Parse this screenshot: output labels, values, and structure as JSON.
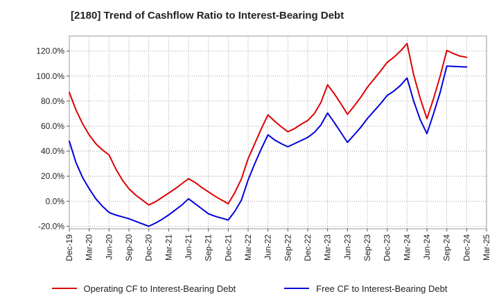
{
  "title": "[2180]  Trend of Cashflow Ratio to Interest-Bearing Debt",
  "chart_data": {
    "type": "line",
    "title": "[2180]  Trend of Cashflow Ratio to Interest-Bearing Debt",
    "xlabel": "",
    "ylabel": "",
    "x_ticks": [
      "Dec-19",
      "Mar-20",
      "Jun-20",
      "Sep-20",
      "Dec-20",
      "Mar-21",
      "Jun-21",
      "Sep-21",
      "Dec-21",
      "Mar-22",
      "Jun-22",
      "Sep-22",
      "Dec-22",
      "Mar-23",
      "Jun-23",
      "Sep-23",
      "Dec-23",
      "Mar-24",
      "Jun-24",
      "Sep-24",
      "Dec-24",
      "Mar-25"
    ],
    "y_ticks": [
      "-20.0%",
      "0.0%",
      "20.0%",
      "40.0%",
      "60.0%",
      "80.0%",
      "100.0%",
      "120.0%"
    ],
    "ylim": [
      -22,
      132
    ],
    "grid": true,
    "legend_position": "bottom",
    "x_months": [
      0,
      1,
      2,
      3,
      4,
      5,
      6,
      7,
      8,
      9,
      10,
      11,
      12,
      13,
      14,
      15,
      16,
      17,
      18,
      19,
      20,
      21,
      22,
      23,
      24,
      25,
      26,
      27,
      28,
      29,
      30,
      31,
      32,
      33,
      34,
      35,
      36,
      37,
      38,
      39,
      40,
      41,
      42,
      43,
      44,
      45,
      46,
      47,
      48,
      49,
      50,
      51,
      52,
      53,
      54,
      55,
      56,
      57,
      58,
      59,
      60
    ],
    "series": [
      {
        "name": "Operating CF to Interest-Bearing Debt",
        "color": "#dd0000",
        "points": [
          [
            0,
            87
          ],
          [
            1,
            73
          ],
          [
            2,
            62
          ],
          [
            3,
            53
          ],
          [
            4,
            46
          ],
          [
            5,
            41
          ],
          [
            6,
            37
          ],
          [
            7,
            26
          ],
          [
            8,
            17
          ],
          [
            9,
            10
          ],
          [
            10,
            5
          ],
          [
            11,
            1
          ],
          [
            12,
            -3
          ],
          [
            13,
            -0.5
          ],
          [
            14,
            3
          ],
          [
            15,
            6.5
          ],
          [
            16,
            10
          ],
          [
            17,
            14
          ],
          [
            18,
            18
          ],
          [
            19,
            15
          ],
          [
            20,
            11
          ],
          [
            21,
            7.5
          ],
          [
            22,
            4
          ],
          [
            23,
            1
          ],
          [
            24,
            -2
          ],
          [
            25,
            7
          ],
          [
            26,
            18
          ],
          [
            27,
            34
          ],
          [
            28,
            46
          ],
          [
            29,
            58
          ],
          [
            30,
            69
          ],
          [
            31,
            64
          ],
          [
            32,
            59.5
          ],
          [
            33,
            55.5
          ],
          [
            34,
            58
          ],
          [
            35,
            61.5
          ],
          [
            36,
            64.5
          ],
          [
            37,
            70
          ],
          [
            38,
            79
          ],
          [
            39,
            93
          ],
          [
            40,
            86
          ],
          [
            41,
            78
          ],
          [
            42,
            69.5
          ],
          [
            43,
            76
          ],
          [
            44,
            83
          ],
          [
            45,
            91
          ],
          [
            46,
            97.5
          ],
          [
            47,
            104
          ],
          [
            48,
            111
          ],
          [
            49,
            115
          ],
          [
            50,
            120
          ],
          [
            51,
            126
          ],
          [
            52,
            101
          ],
          [
            53,
            82
          ],
          [
            54,
            66
          ],
          [
            55,
            82
          ],
          [
            56,
            100
          ],
          [
            57,
            120.5
          ],
          [
            58,
            118
          ],
          [
            59,
            116
          ],
          [
            60,
            115
          ]
        ]
      },
      {
        "name": "Free CF to Interest-Bearing Debt",
        "color": "#0000dd",
        "points": [
          [
            0,
            48
          ],
          [
            1,
            31
          ],
          [
            2,
            19
          ],
          [
            3,
            10
          ],
          [
            4,
            2
          ],
          [
            5,
            -4
          ],
          [
            6,
            -9
          ],
          [
            7,
            -11
          ],
          [
            8,
            -12.5
          ],
          [
            9,
            -14
          ],
          [
            10,
            -16
          ],
          [
            11,
            -18
          ],
          [
            12,
            -20
          ],
          [
            13,
            -17.5
          ],
          [
            14,
            -14.5
          ],
          [
            15,
            -11
          ],
          [
            16,
            -7
          ],
          [
            17,
            -3
          ],
          [
            18,
            2
          ],
          [
            19,
            -2
          ],
          [
            20,
            -6
          ],
          [
            21,
            -10
          ],
          [
            22,
            -12
          ],
          [
            23,
            -13.5
          ],
          [
            24,
            -15
          ],
          [
            25,
            -8
          ],
          [
            26,
            1
          ],
          [
            27,
            17
          ],
          [
            28,
            30
          ],
          [
            29,
            42
          ],
          [
            30,
            53
          ],
          [
            31,
            49
          ],
          [
            32,
            46
          ],
          [
            33,
            43.5
          ],
          [
            34,
            46
          ],
          [
            35,
            48.5
          ],
          [
            36,
            51
          ],
          [
            37,
            55
          ],
          [
            38,
            61
          ],
          [
            39,
            70.5
          ],
          [
            40,
            63
          ],
          [
            41,
            55
          ],
          [
            42,
            47
          ],
          [
            43,
            53
          ],
          [
            44,
            59
          ],
          [
            45,
            66
          ],
          [
            46,
            72
          ],
          [
            47,
            78
          ],
          [
            48,
            84.5
          ],
          [
            49,
            88
          ],
          [
            50,
            92.5
          ],
          [
            51,
            98.5
          ],
          [
            52,
            80
          ],
          [
            53,
            65
          ],
          [
            54,
            54
          ],
          [
            55,
            70
          ],
          [
            56,
            87
          ],
          [
            57,
            108
          ],
          [
            58,
            107.8
          ],
          [
            59,
            107.5
          ],
          [
            60,
            107.3
          ]
        ]
      }
    ]
  }
}
